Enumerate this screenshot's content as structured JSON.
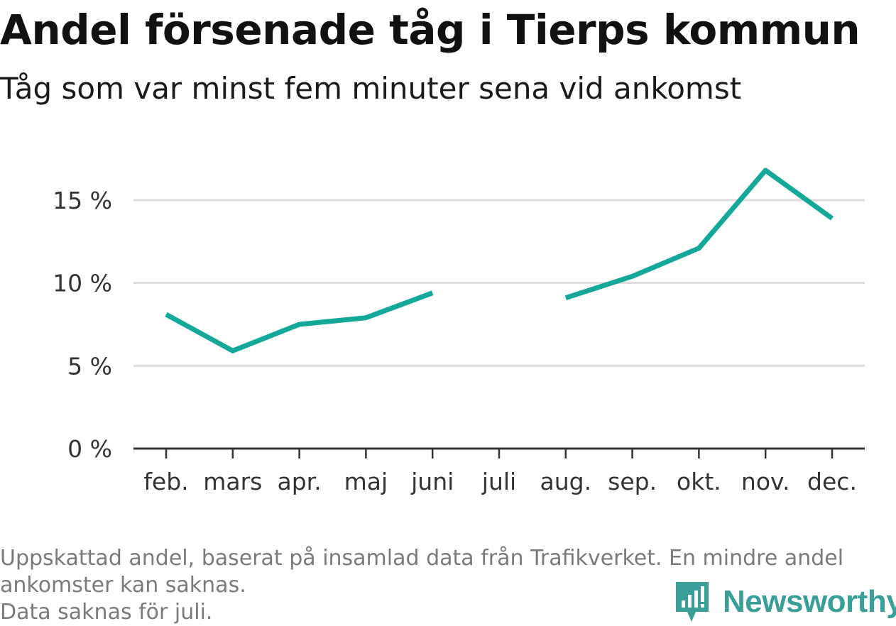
{
  "title": "Andel försenade tåg i Tierps kommun",
  "subtitle": "Tåg som var minst fem minuter sena vid ankomst",
  "footnote": {
    "line1": "Uppskattad andel, baserat på insamlad data från Trafikverket. En mindre andel",
    "line2": "ankomster kan saknas.",
    "line3": "Data saknas för juli."
  },
  "brand": {
    "name": "Newsworthy",
    "icon": "newsworthy-logo-icon"
  },
  "colors": {
    "line": "#13a89a",
    "grid": "#dddddd",
    "axis": "#333333",
    "text": "#333333"
  },
  "chart_data": {
    "type": "line",
    "categories": [
      "feb.",
      "mars",
      "apr.",
      "maj",
      "juni",
      "juli",
      "aug.",
      "sep.",
      "okt.",
      "nov.",
      "dec."
    ],
    "series": [
      {
        "values": [
          8.1,
          5.9,
          7.5,
          7.9,
          9.4,
          null,
          9.1,
          10.4,
          12.1,
          16.8,
          13.9
        ]
      }
    ],
    "yticks": [
      {
        "value": 0,
        "label": "0 %"
      },
      {
        "value": 5,
        "label": "5 %"
      },
      {
        "value": 10,
        "label": "10 %"
      },
      {
        "value": 15,
        "label": "15 %"
      }
    ],
    "ylim": [
      0,
      18
    ],
    "grid": true
  }
}
